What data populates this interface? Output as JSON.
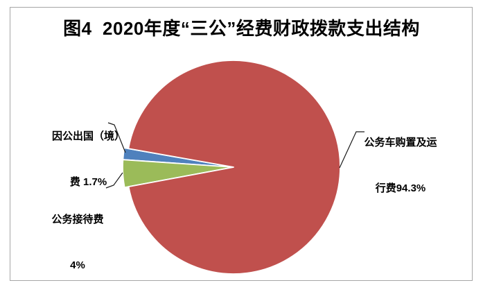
{
  "title": "图4  2020年度“三公”经费财政拨款支出结构",
  "chart_data": {
    "type": "pie",
    "title": "图4  2020年度“三公”经费财政拨款支出结构",
    "slices": [
      {
        "name": "因公出国（境）费",
        "value_pct": 1.7,
        "color": "#4f81bd"
      },
      {
        "name": "公务接待费",
        "value_pct": 4.0,
        "color": "#9bbb59"
      },
      {
        "name": "公务车购置及运行费",
        "value_pct": 94.3,
        "color": "#c0504d"
      }
    ],
    "start_angle_deg": 170,
    "legend": "none",
    "labels_outside": true,
    "separator_color": "#ffffff"
  },
  "labels": {
    "outbound": {
      "line1": "因公出国（境）",
      "line2": "费 1.7%"
    },
    "reception": {
      "line1": "公务接待费",
      "line2": "4%"
    },
    "vehicle": {
      "line1": "公务车购置及运",
      "line2": "行费94.3%"
    }
  },
  "colors": {
    "frame_border": "#a6a6a6",
    "background": "#ffffff",
    "leader_line": "#1a1a1a"
  }
}
